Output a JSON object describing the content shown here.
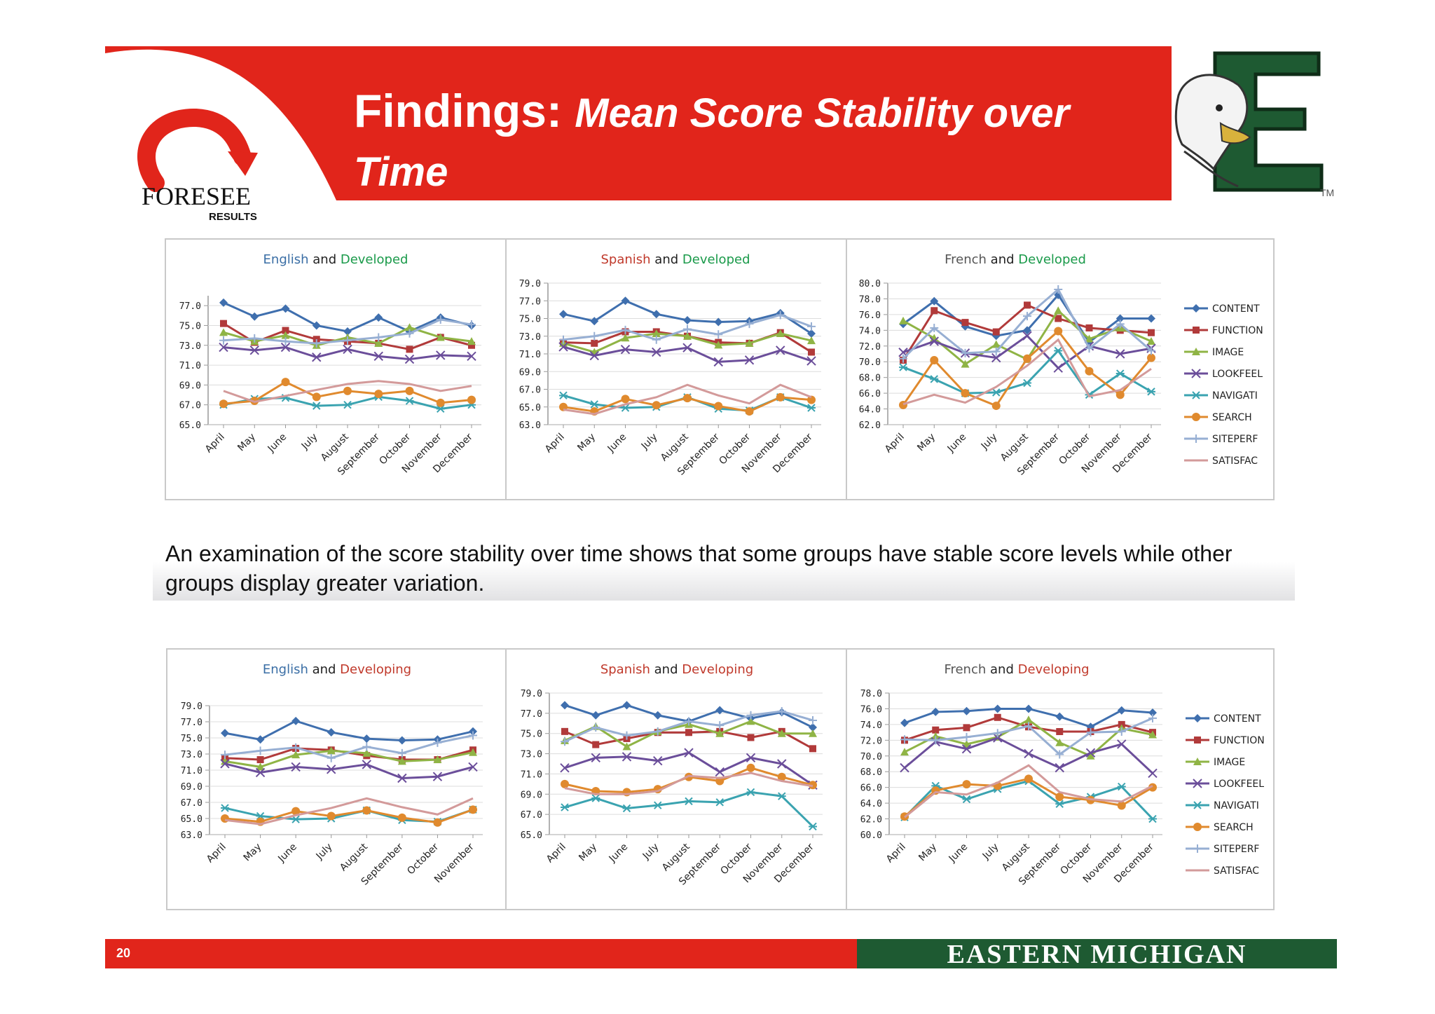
{
  "header": {
    "title_main": "Findings:",
    "title_sub": "Mean Score Stability over Time",
    "brand_name": "FORESEE",
    "brand_tagline": "RESULTS",
    "logo_letter": "E",
    "logo_tm": "TM"
  },
  "summary": {
    "text": "An examination of the score stability over time  shows that some groups have stable score levels while other groups display greater variation."
  },
  "footer": {
    "page_number": "20",
    "university": "EASTERN MICHIGAN UNIVERSITY"
  },
  "colors": {
    "brand_red": "#e1251b",
    "emu_green": "#1e5a32",
    "title_blue": "#3a6ea5",
    "title_green": "#1a9a4a",
    "title_red": "#c0392b",
    "CONTENT": "#3f6fae",
    "FUNCTION": "#b13a3a",
    "IMAGE": "#8fb445",
    "LOOKFEEL": "#6b4e9a",
    "NAVIGATI": "#3aa3b0",
    "SEARCH": "#e08a2e",
    "SITEPERF": "#97afd3",
    "SATISFAC": "#d39a9a"
  },
  "legend": [
    "CONTENT",
    "FUNCTION",
    "IMAGE",
    "LOOKFEEL",
    "NAVIGATI",
    "SEARCH",
    "SITEPERF",
    "SATISFAC"
  ],
  "chart_data": [
    {
      "type": "line",
      "title_parts": [
        "English",
        "and",
        "Developed"
      ],
      "title_colors": [
        "#3a6ea5",
        "#222222",
        "#1a9a4a"
      ],
      "categories": [
        "April",
        "May",
        "June",
        "July",
        "August",
        "September",
        "October",
        "November",
        "December"
      ],
      "ylim": [
        65,
        78
      ],
      "yticks": [
        "77.0",
        "75.0",
        "73.0",
        "71.0",
        "69.0",
        "67.0",
        "65.0"
      ],
      "series": [
        {
          "name": "CONTENT",
          "values": [
            77.3,
            75.9,
            76.7,
            75.0,
            74.4,
            75.8,
            74.4,
            75.8,
            75.0
          ]
        },
        {
          "name": "FUNCTION",
          "values": [
            75.2,
            73.3,
            74.5,
            73.6,
            73.4,
            73.2,
            72.6,
            73.8,
            73.0
          ]
        },
        {
          "name": "IMAGE",
          "values": [
            74.3,
            73.4,
            74.0,
            73.0,
            73.8,
            73.2,
            74.8,
            73.8,
            73.4
          ]
        },
        {
          "name": "LOOKFEEL",
          "values": [
            72.8,
            72.5,
            72.8,
            71.8,
            72.6,
            71.9,
            71.6,
            72.0,
            71.9
          ]
        },
        {
          "name": "NAVIGATI",
          "values": [
            67.0,
            67.6,
            67.7,
            66.9,
            67.0,
            67.8,
            67.4,
            66.6,
            67.0
          ]
        },
        {
          "name": "SEARCH",
          "values": [
            67.1,
            67.4,
            69.3,
            67.8,
            68.4,
            68.1,
            68.4,
            67.2,
            67.5
          ]
        },
        {
          "name": "SITEPERF",
          "values": [
            73.5,
            73.7,
            73.4,
            73.2,
            73.5,
            73.8,
            74.2,
            75.6,
            75.1
          ]
        },
        {
          "name": "SATISFAC",
          "values": [
            68.4,
            67.3,
            67.9,
            68.5,
            69.1,
            69.4,
            69.1,
            68.4,
            68.9
          ]
        }
      ]
    },
    {
      "type": "line",
      "title_parts": [
        "Spanish",
        "and",
        "Developed"
      ],
      "title_colors": [
        "#c0392b",
        "#222222",
        "#1a9a4a"
      ],
      "categories": [
        "April",
        "May",
        "June",
        "July",
        "August",
        "September",
        "October",
        "November",
        "December"
      ],
      "ylim": [
        63,
        79
      ],
      "yticks": [
        "79.0",
        "77.0",
        "75.0",
        "73.0",
        "71.0",
        "69.0",
        "67.0",
        "65.0",
        "63.0"
      ],
      "series": [
        {
          "name": "CONTENT",
          "values": [
            75.5,
            74.7,
            77.0,
            75.5,
            74.8,
            74.6,
            74.7,
            75.6,
            73.3
          ]
        },
        {
          "name": "FUNCTION",
          "values": [
            72.3,
            72.2,
            73.5,
            73.5,
            73.0,
            72.3,
            72.2,
            73.4,
            71.2
          ]
        },
        {
          "name": "IMAGE",
          "values": [
            72.2,
            71.2,
            72.8,
            73.3,
            73.0,
            72.0,
            72.2,
            73.3,
            72.5
          ]
        },
        {
          "name": "LOOKFEEL",
          "values": [
            71.8,
            70.8,
            71.5,
            71.2,
            71.7,
            70.1,
            70.3,
            71.4,
            70.2
          ]
        },
        {
          "name": "NAVIGATI",
          "values": [
            66.3,
            65.3,
            64.9,
            65.0,
            66.1,
            64.8,
            64.6,
            66.1,
            64.9
          ]
        },
        {
          "name": "SEARCH",
          "values": [
            65.0,
            64.5,
            65.9,
            65.2,
            66.0,
            65.1,
            64.5,
            66.1,
            65.8
          ]
        },
        {
          "name": "SITEPERF",
          "values": [
            72.6,
            73.0,
            73.7,
            72.6,
            73.8,
            73.2,
            74.4,
            75.4,
            74.1
          ]
        },
        {
          "name": "SATISFAC",
          "values": [
            64.7,
            64.2,
            65.3,
            66.1,
            67.5,
            66.3,
            65.4,
            67.5,
            66.1
          ]
        }
      ]
    },
    {
      "type": "line",
      "title_parts": [
        "French",
        "and",
        "Developed"
      ],
      "title_colors": [
        "#555555",
        "#222222",
        "#1a9a4a"
      ],
      "categories": [
        "April",
        "May",
        "June",
        "July",
        "August",
        "September",
        "October",
        "November",
        "December"
      ],
      "ylim": [
        62,
        80
      ],
      "yticks": [
        "80.0",
        "78.0",
        "76.0",
        "74.0",
        "72.0",
        "70.0",
        "68.0",
        "66.0",
        "64.0",
        "62.0"
      ],
      "series": [
        {
          "name": "CONTENT",
          "values": [
            74.8,
            77.7,
            74.5,
            73.3,
            74.0,
            78.5,
            72.5,
            75.5,
            75.5
          ]
        },
        {
          "name": "FUNCTION",
          "values": [
            70.2,
            76.5,
            75.0,
            73.8,
            77.2,
            75.5,
            74.3,
            74.0,
            73.7
          ]
        },
        {
          "name": "IMAGE",
          "values": [
            75.2,
            73.0,
            69.7,
            72.2,
            70.3,
            76.5,
            72.9,
            74.3,
            72.6
          ]
        },
        {
          "name": "LOOKFEEL",
          "values": [
            71.2,
            72.6,
            71.1,
            70.5,
            73.3,
            69.2,
            72.0,
            71.0,
            71.7
          ]
        },
        {
          "name": "NAVIGATI",
          "values": [
            69.3,
            67.8,
            66.0,
            66.1,
            67.3,
            71.4,
            65.8,
            68.5,
            66.2
          ]
        },
        {
          "name": "SEARCH",
          "values": [
            64.5,
            70.2,
            66.0,
            64.4,
            70.4,
            73.9,
            68.8,
            65.8,
            70.5
          ]
        },
        {
          "name": "SITEPERF",
          "values": [
            70.4,
            74.3,
            71.1,
            71.3,
            75.8,
            79.2,
            71.7,
            74.8,
            71.4
          ]
        },
        {
          "name": "SATISFAC",
          "values": [
            64.6,
            65.8,
            64.8,
            66.8,
            69.5,
            72.8,
            65.6,
            66.4,
            69.1
          ]
        }
      ]
    },
    {
      "type": "line",
      "title_parts": [
        "English",
        "and",
        "Developing"
      ],
      "title_colors": [
        "#3a6ea5",
        "#222222",
        "#c0392b"
      ],
      "categories": [
        "April",
        "May",
        "June",
        "July",
        "August",
        "September",
        "October",
        "November"
      ],
      "ylim": [
        63,
        79
      ],
      "yticks": [
        "79.0",
        "77.0",
        "75.0",
        "73.0",
        "71.0",
        "69.0",
        "67.0",
        "65.0",
        "63.0"
      ],
      "series": [
        {
          "name": "CONTENT",
          "values": [
            75.6,
            74.8,
            77.1,
            75.7,
            74.9,
            74.7,
            74.8,
            75.8
          ]
        },
        {
          "name": "FUNCTION",
          "values": [
            72.5,
            72.3,
            73.7,
            73.5,
            72.8,
            72.3,
            72.3,
            73.5
          ]
        },
        {
          "name": "IMAGE",
          "values": [
            72.1,
            71.4,
            72.9,
            73.4,
            73.1,
            72.1,
            72.3,
            73.2
          ]
        },
        {
          "name": "LOOKFEEL",
          "values": [
            71.8,
            70.7,
            71.4,
            71.1,
            71.7,
            70.0,
            70.2,
            71.4
          ]
        },
        {
          "name": "NAVIGATI",
          "values": [
            66.3,
            65.3,
            64.9,
            65.0,
            66.0,
            64.8,
            64.6,
            66.1
          ]
        },
        {
          "name": "SEARCH",
          "values": [
            65.0,
            64.6,
            65.9,
            65.3,
            66.0,
            65.1,
            64.5,
            66.1
          ]
        },
        {
          "name": "SITEPERF",
          "values": [
            72.9,
            73.4,
            73.8,
            72.5,
            73.9,
            73.1,
            74.4,
            75.3
          ]
        },
        {
          "name": "SATISFAC",
          "values": [
            64.8,
            64.3,
            65.4,
            66.3,
            67.5,
            66.4,
            65.5,
            67.5
          ]
        }
      ]
    },
    {
      "type": "line",
      "title_parts": [
        "Spanish",
        "and",
        "Developing"
      ],
      "title_colors": [
        "#c0392b",
        "#222222",
        "#c0392b"
      ],
      "categories": [
        "April",
        "May",
        "June",
        "July",
        "August",
        "September",
        "October",
        "November",
        "December"
      ],
      "ylim": [
        65,
        79
      ],
      "yticks": [
        "79.0",
        "77.0",
        "75.0",
        "73.0",
        "71.0",
        "69.0",
        "67.0",
        "65.0"
      ],
      "series": [
        {
          "name": "CONTENT",
          "values": [
            77.8,
            76.8,
            77.8,
            76.8,
            76.2,
            77.3,
            76.5,
            77.1,
            75.6
          ]
        },
        {
          "name": "FUNCTION",
          "values": [
            75.2,
            73.9,
            74.5,
            75.1,
            75.1,
            75.2,
            74.6,
            75.2,
            73.5
          ]
        },
        {
          "name": "IMAGE",
          "values": [
            74.3,
            75.7,
            73.7,
            75.2,
            75.9,
            75.0,
            76.2,
            75.0,
            75.0
          ]
        },
        {
          "name": "LOOKFEEL",
          "values": [
            71.6,
            72.6,
            72.7,
            72.3,
            73.1,
            71.2,
            72.6,
            72.0,
            69.9
          ]
        },
        {
          "name": "NAVIGATI",
          "values": [
            67.7,
            68.6,
            67.6,
            67.9,
            68.3,
            68.2,
            69.2,
            68.8,
            65.8
          ]
        },
        {
          "name": "SEARCH",
          "values": [
            70.0,
            69.3,
            69.2,
            69.5,
            70.7,
            70.3,
            71.6,
            70.7,
            69.9
          ]
        },
        {
          "name": "SITEPERF",
          "values": [
            74.2,
            75.6,
            74.8,
            75.2,
            76.2,
            75.8,
            76.8,
            77.2,
            76.3
          ]
        },
        {
          "name": "SATISFAC",
          "values": [
            69.6,
            69.0,
            69.0,
            69.3,
            70.8,
            70.6,
            71.1,
            70.3,
            69.8
          ]
        }
      ]
    },
    {
      "type": "line",
      "title_parts": [
        "French",
        "and",
        "Developing"
      ],
      "title_colors": [
        "#555555",
        "#222222",
        "#c0392b"
      ],
      "categories": [
        "April",
        "May",
        "June",
        "July",
        "August",
        "September",
        "October",
        "November",
        "December"
      ],
      "ylim": [
        60,
        78
      ],
      "yticks": [
        "78.0",
        "76.0",
        "74.0",
        "72.0",
        "70.0",
        "68.0",
        "66.0",
        "64.0",
        "62.0",
        "60.0"
      ],
      "series": [
        {
          "name": "CONTENT",
          "values": [
            74.2,
            75.6,
            75.7,
            76.0,
            76.0,
            75.0,
            73.7,
            75.8,
            75.5
          ]
        },
        {
          "name": "FUNCTION",
          "values": [
            72.0,
            73.3,
            73.6,
            74.9,
            73.7,
            73.1,
            73.1,
            74.0,
            73.0
          ]
        },
        {
          "name": "IMAGE",
          "values": [
            70.5,
            72.5,
            71.5,
            72.4,
            74.6,
            71.7,
            70.0,
            73.5,
            72.7
          ]
        },
        {
          "name": "LOOKFEEL",
          "values": [
            68.5,
            71.8,
            70.9,
            72.3,
            70.3,
            68.5,
            70.4,
            71.5,
            67.8
          ]
        },
        {
          "name": "NAVIGATI",
          "values": [
            62.2,
            66.2,
            64.5,
            65.8,
            66.8,
            63.9,
            64.8,
            66.1,
            62.0
          ]
        },
        {
          "name": "SEARCH",
          "values": [
            62.3,
            65.6,
            66.4,
            66.2,
            67.1,
            64.8,
            64.4,
            63.7,
            66.0
          ]
        },
        {
          "name": "SITEPERF",
          "values": [
            72.1,
            72.0,
            72.4,
            72.9,
            73.8,
            70.2,
            73.0,
            73.1,
            74.8
          ]
        },
        {
          "name": "SATISFAC",
          "values": [
            62.2,
            65.4,
            65.1,
            66.6,
            68.8,
            65.4,
            64.5,
            64.2,
            66.2
          ]
        }
      ]
    }
  ]
}
